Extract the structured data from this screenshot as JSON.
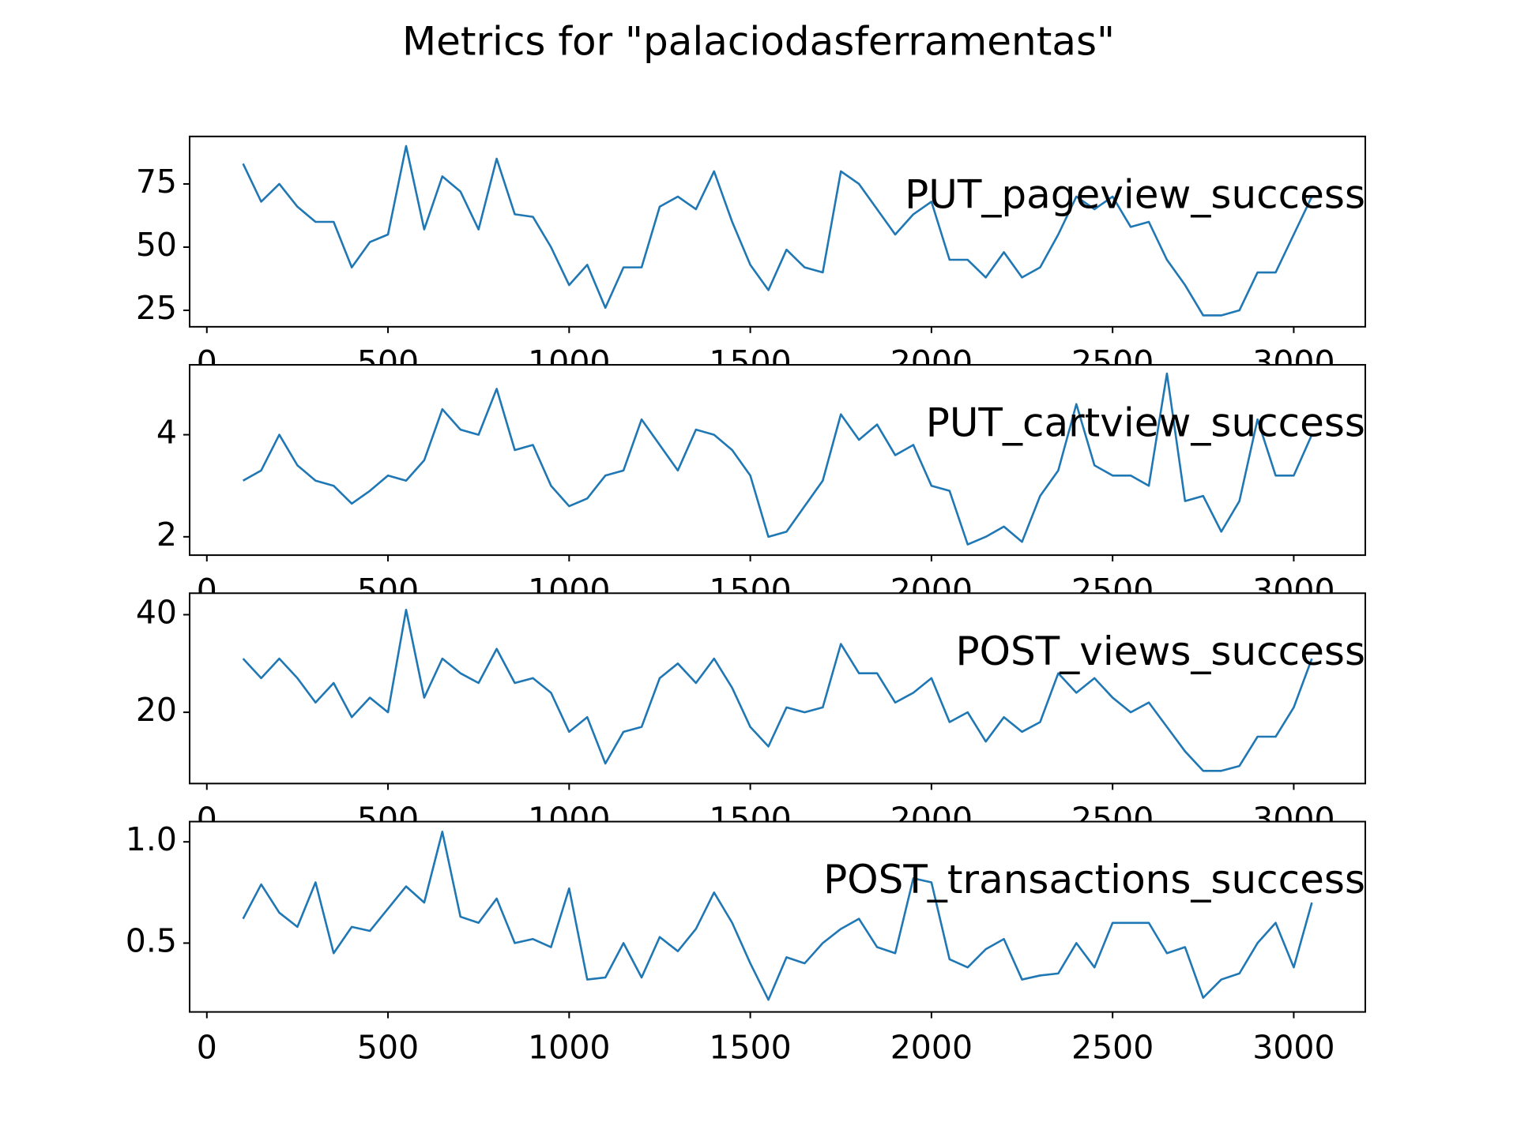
{
  "title": "Metrics for \"palaciodasferramentas\"",
  "chart_data": [
    {
      "type": "line",
      "annotation": "PUT_pageview_success",
      "color": "#1f77b4",
      "x": [
        100,
        150,
        200,
        250,
        300,
        350,
        400,
        450,
        500,
        550,
        600,
        650,
        700,
        750,
        800,
        850,
        900,
        950,
        1000,
        1050,
        1100,
        1150,
        1200,
        1250,
        1300,
        1350,
        1400,
        1450,
        1500,
        1550,
        1600,
        1650,
        1700,
        1750,
        1800,
        1850,
        1900,
        1950,
        2000,
        2050,
        2100,
        2150,
        2200,
        2250,
        2300,
        2350,
        2400,
        2450,
        2500,
        2550,
        2600,
        2650,
        2700,
        2750,
        2800,
        2850,
        2900,
        2950,
        3000,
        3050
      ],
      "values": [
        83,
        68,
        75,
        66,
        60,
        60,
        42,
        52,
        55,
        90,
        57,
        78,
        72,
        57,
        85,
        63,
        62,
        50,
        35,
        43,
        26,
        42,
        42,
        66,
        70,
        65,
        80,
        60,
        43,
        33,
        49,
        42,
        40,
        80,
        75,
        65,
        55,
        63,
        68,
        45,
        45,
        38,
        48,
        38,
        42,
        55,
        70,
        65,
        70,
        58,
        60,
        45,
        35,
        23,
        23,
        25,
        40,
        40,
        55,
        70
      ],
      "xlim": [
        -47.5,
        3197.5
      ],
      "xticks": [
        0,
        500,
        1000,
        1500,
        2000,
        2500,
        3000
      ],
      "ylim": [
        18.5,
        93.8
      ],
      "yticks": [
        25,
        50,
        75
      ]
    },
    {
      "type": "line",
      "annotation": "PUT_cartview_success",
      "color": "#1f77b4",
      "x": [
        100,
        150,
        200,
        250,
        300,
        350,
        400,
        450,
        500,
        550,
        600,
        650,
        700,
        750,
        800,
        850,
        900,
        950,
        1000,
        1050,
        1100,
        1150,
        1200,
        1250,
        1300,
        1350,
        1400,
        1450,
        1500,
        1550,
        1600,
        1650,
        1700,
        1750,
        1800,
        1850,
        1900,
        1950,
        2000,
        2050,
        2100,
        2150,
        2200,
        2250,
        2300,
        2350,
        2400,
        2450,
        2500,
        2550,
        2600,
        2650,
        2700,
        2750,
        2800,
        2850,
        2900,
        2950,
        3000,
        3050
      ],
      "values": [
        3.1,
        3.3,
        4.0,
        3.4,
        3.1,
        3.0,
        2.65,
        2.9,
        3.2,
        3.1,
        3.5,
        4.5,
        4.1,
        4.0,
        4.9,
        3.7,
        3.8,
        3.0,
        2.6,
        2.75,
        3.2,
        3.3,
        4.3,
        3.8,
        3.3,
        4.1,
        4.0,
        3.7,
        3.2,
        2.0,
        2.1,
        2.6,
        3.1,
        4.4,
        3.9,
        4.2,
        3.6,
        3.8,
        3.0,
        2.9,
        1.85,
        2.0,
        2.2,
        1.9,
        2.8,
        3.3,
        4.6,
        3.4,
        3.2,
        3.2,
        3.0,
        5.2,
        2.7,
        2.8,
        2.1,
        2.7,
        4.3,
        3.2,
        3.2,
        4.0
      ],
      "xlim": [
        -47.5,
        3197.5
      ],
      "xticks": [
        0,
        500,
        1000,
        1500,
        2000,
        2500,
        3000
      ],
      "ylim": [
        1.64,
        5.37
      ],
      "yticks": [
        2,
        4
      ]
    },
    {
      "type": "line",
      "annotation": "POST_views_success",
      "color": "#1f77b4",
      "x": [
        100,
        150,
        200,
        250,
        300,
        350,
        400,
        450,
        500,
        550,
        600,
        650,
        700,
        750,
        800,
        850,
        900,
        950,
        1000,
        1050,
        1100,
        1150,
        1200,
        1250,
        1300,
        1350,
        1400,
        1450,
        1500,
        1550,
        1600,
        1650,
        1700,
        1750,
        1800,
        1850,
        1900,
        1950,
        2000,
        2050,
        2100,
        2150,
        2200,
        2250,
        2300,
        2350,
        2400,
        2450,
        2500,
        2550,
        2600,
        2650,
        2700,
        2750,
        2800,
        2850,
        2900,
        2950,
        3000,
        3050
      ],
      "values": [
        31,
        27,
        31,
        27,
        22,
        26,
        19,
        23,
        20,
        41,
        23,
        31,
        28,
        26,
        33,
        26,
        27,
        24,
        16,
        19,
        9.5,
        16,
        17,
        27,
        30,
        26,
        31,
        25,
        17,
        13,
        21,
        20,
        21,
        34,
        28,
        28,
        22,
        24,
        27,
        18,
        20,
        14,
        19,
        16,
        18,
        28,
        24,
        27,
        23,
        20,
        22,
        17,
        12,
        8,
        8,
        9,
        15,
        15,
        21,
        31
      ],
      "xlim": [
        -47.5,
        3197.5
      ],
      "xticks": [
        0,
        500,
        1000,
        1500,
        2000,
        2500,
        3000
      ],
      "ylim": [
        5.4,
        44.4
      ],
      "yticks": [
        20,
        40
      ]
    },
    {
      "type": "line",
      "annotation": "POST_transactions_success",
      "color": "#1f77b4",
      "x": [
        100,
        150,
        200,
        250,
        300,
        350,
        400,
        450,
        500,
        550,
        600,
        650,
        700,
        750,
        800,
        850,
        900,
        950,
        1000,
        1050,
        1100,
        1150,
        1200,
        1250,
        1300,
        1350,
        1400,
        1450,
        1500,
        1550,
        1600,
        1650,
        1700,
        1750,
        1800,
        1850,
        1900,
        1950,
        2000,
        2050,
        2100,
        2150,
        2200,
        2250,
        2300,
        2350,
        2400,
        2450,
        2500,
        2550,
        2600,
        2650,
        2700,
        2750,
        2800,
        2850,
        2900,
        2950,
        3000,
        3050
      ],
      "values": [
        0.62,
        0.79,
        0.65,
        0.58,
        0.8,
        0.45,
        0.58,
        0.56,
        0.67,
        0.78,
        0.7,
        1.05,
        0.63,
        0.6,
        0.72,
        0.5,
        0.52,
        0.48,
        0.77,
        0.32,
        0.33,
        0.5,
        0.33,
        0.53,
        0.46,
        0.57,
        0.75,
        0.6,
        0.4,
        0.22,
        0.43,
        0.4,
        0.5,
        0.57,
        0.62,
        0.48,
        0.45,
        0.82,
        0.8,
        0.42,
        0.38,
        0.47,
        0.52,
        0.32,
        0.34,
        0.35,
        0.5,
        0.38,
        0.6,
        0.6,
        0.6,
        0.45,
        0.48,
        0.23,
        0.32,
        0.35,
        0.5,
        0.6,
        0.38,
        0.7
      ],
      "xlim": [
        -47.5,
        3197.5
      ],
      "xticks": [
        0,
        500,
        1000,
        1500,
        2000,
        2500,
        3000
      ],
      "ylim": [
        0.16,
        1.1
      ],
      "yticks": [
        0.5,
        {
          "value": 1,
          "label": "1.0"
        }
      ]
    }
  ]
}
